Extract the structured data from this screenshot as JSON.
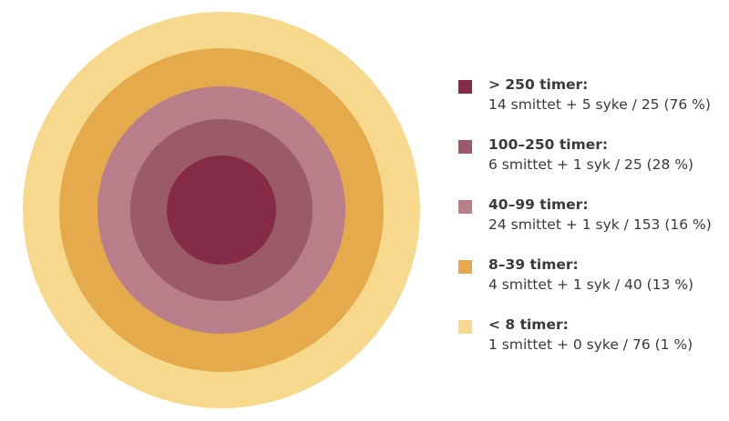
{
  "chart_data": {
    "type": "concentric-circles",
    "description_order": "innermost-to-outermost",
    "rings": [
      {
        "category": "> 250 timer:",
        "detail": "14 smittet + 5 syke / 25 (76 %)",
        "infected": 14,
        "sick": 5,
        "total": 25,
        "percent": 76,
        "color": "#852A47"
      },
      {
        "category": "100–250 timer:",
        "detail": "6 smittet + 1 syk / 25 (28 %)",
        "infected": 6,
        "sick": 1,
        "total": 25,
        "percent": 28,
        "color": "#9B5A69"
      },
      {
        "category": "40–99 timer:",
        "detail": "24 smittet + 1 syk / 153 (16 %)",
        "infected": 24,
        "sick": 1,
        "total": 153,
        "percent": 16,
        "color": "#B87E8A"
      },
      {
        "category": "8–39 timer:",
        "detail": "4 smittet + 1 syk / 40 (13 %)",
        "infected": 4,
        "sick": 1,
        "total": 40,
        "percent": 13,
        "color": "#E5AA4C"
      },
      {
        "category": "< 8 timer:",
        "detail": "1 smittet + 0 syke / 76 (1 %)",
        "infected": 1,
        "sick": 0,
        "total": 76,
        "percent": 1,
        "color": "#F6D98C"
      }
    ]
  }
}
